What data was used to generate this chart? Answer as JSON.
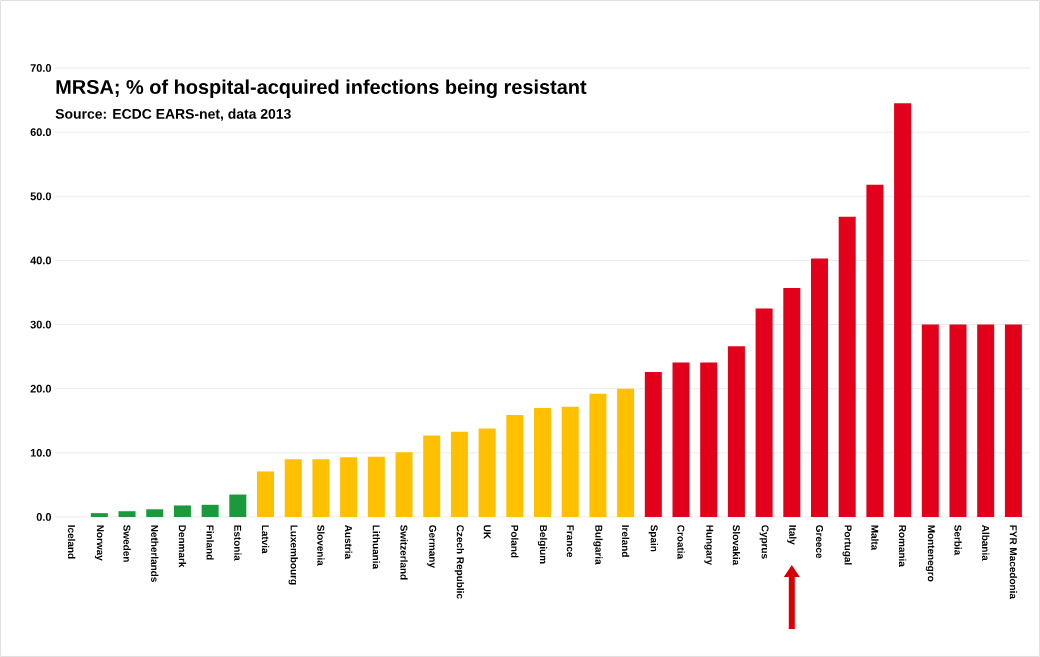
{
  "chart_data": {
    "type": "bar",
    "title": "MRSA; % of hospital-acquired infections being resistant",
    "subtitle": "Source: ECDC EARS-net, data 2013",
    "categories": [
      "Iceland",
      "Norway",
      "Sweden",
      "Netherlands",
      "Denmark",
      "Finland",
      "Estonia",
      "Latvia",
      "Luxembourg",
      "Slovenia",
      "Austria",
      "Lithuania",
      "Switzerland",
      "Germany",
      "Czech Republic",
      "UK",
      "Poland",
      "Belgium",
      "France",
      "Bulgaria",
      "Ireland",
      "Spain",
      "Croatia",
      "Hungary",
      "Slovakia",
      "Cyprus",
      "Italy",
      "Greece",
      "Portugal",
      "Malta",
      "Romania",
      "Montenegro",
      "Serbia",
      "Albania",
      "FYR Macedonia"
    ],
    "values": [
      0,
      0.6,
      0.9,
      1.2,
      1.8,
      1.9,
      3.5,
      7.1,
      9.0,
      9.0,
      9.3,
      9.4,
      10.1,
      12.7,
      13.3,
      13.8,
      15.9,
      17.0,
      17.2,
      19.2,
      20.0,
      22.6,
      24.1,
      24.1,
      26.6,
      32.5,
      35.7,
      40.3,
      46.8,
      51.8,
      64.5,
      30.0,
      30.0,
      30.0,
      30.0
    ],
    "colors": [
      "#1a9a3a",
      "#1a9a3a",
      "#1a9a3a",
      "#1a9a3a",
      "#1a9a3a",
      "#1a9a3a",
      "#1a9a3a",
      "#ffc000",
      "#ffc000",
      "#ffc000",
      "#ffc000",
      "#ffc000",
      "#ffc000",
      "#ffc000",
      "#ffc000",
      "#ffc000",
      "#ffc000",
      "#ffc000",
      "#ffc000",
      "#ffc000",
      "#ffc000",
      "#e2001a",
      "#e2001a",
      "#e2001a",
      "#e2001a",
      "#e2001a",
      "#e2001a",
      "#e2001a",
      "#e2001a",
      "#e2001a",
      "#e2001a",
      "#e2001a",
      "#e2001a",
      "#e2001a",
      "#e2001a"
    ],
    "ylim": [
      0,
      70
    ],
    "yticks": [
      {
        "value": 0,
        "label": "0.0"
      },
      {
        "value": 10,
        "label": "10.0"
      },
      {
        "value": 20,
        "label": "20.0"
      },
      {
        "value": 30,
        "label": "30.0"
      },
      {
        "value": 40,
        "label": "40.0"
      },
      {
        "value": 50,
        "label": "50.0"
      },
      {
        "value": 60,
        "label": "60.0"
      },
      {
        "value": 70,
        "label": "70.0"
      }
    ],
    "grid": "y"
  }
}
